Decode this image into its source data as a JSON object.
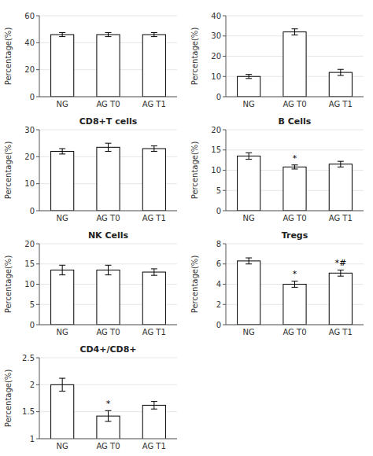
{
  "chart_data": [
    {
      "type": "bar",
      "y_label": "Percentage(%)",
      "ylim": [
        0,
        60
      ],
      "yticks": [
        0,
        20,
        40,
        60
      ],
      "categories": [
        "NG",
        "AG T0",
        "AG T1"
      ],
      "values": [
        46,
        46,
        46
      ],
      "errors": [
        1.5,
        1.5,
        1.5
      ],
      "color": "white"
    },
    {
      "type": "bar",
      "y_label": "Percentage(%)",
      "ylim": [
        0,
        40
      ],
      "yticks": [
        0,
        10,
        20,
        30,
        40
      ],
      "categories": [
        "NG",
        "AG T0",
        "AG T1"
      ],
      "values": [
        10,
        32,
        12
      ],
      "errors": [
        1.0,
        1.5,
        1.5
      ],
      "color": "white"
    },
    {
      "type": "bar",
      "title": "CD8+T cells",
      "y_label": "Percentage(%)",
      "ylim": [
        0,
        30
      ],
      "yticks": [
        0,
        10,
        20,
        30
      ],
      "categories": [
        "NG",
        "AG T0",
        "AG T1"
      ],
      "values": [
        22,
        23.5,
        23
      ],
      "errors": [
        1.0,
        1.5,
        1.0
      ],
      "color": "white"
    },
    {
      "type": "bar",
      "title": "B Cells",
      "y_label": "Percentage(%)",
      "ylim": [
        0,
        20
      ],
      "yticks": [
        0,
        5,
        10,
        15,
        20
      ],
      "categories": [
        "NG",
        "AG T0",
        "AG T1"
      ],
      "values": [
        13.5,
        10.8,
        11.5
      ],
      "errors": [
        0.8,
        0.5,
        0.7
      ],
      "color": "white",
      "annotations": [
        {
          "text": "*",
          "category": "AG T0"
        }
      ]
    },
    {
      "type": "bar",
      "title": "NK Cells",
      "y_label": "Percentage(%)",
      "ylim": [
        0,
        20
      ],
      "yticks": [
        0,
        5,
        10,
        15,
        20
      ],
      "categories": [
        "NG",
        "AG T0",
        "AG T1"
      ],
      "values": [
        13.5,
        13.5,
        13.0
      ],
      "errors": [
        1.2,
        1.2,
        0.8
      ],
      "color": "white"
    },
    {
      "type": "bar",
      "title": "Tregs",
      "y_label": "Percentage(%)",
      "ylim": [
        0,
        8
      ],
      "yticks": [
        0,
        2,
        4,
        6,
        8
      ],
      "categories": [
        "NG",
        "AG T0",
        "AG T1"
      ],
      "values": [
        6.3,
        4.0,
        5.1
      ],
      "errors": [
        0.3,
        0.3,
        0.3
      ],
      "color": "white",
      "annotations": [
        {
          "text": "*",
          "category": "AG T0"
        },
        {
          "text": "*#",
          "category": "AG T1"
        }
      ]
    },
    {
      "type": "bar",
      "title": "CD4+/CD8+",
      "y_label": "Percentage(%)",
      "ylim": [
        1.0,
        2.5
      ],
      "yticks": [
        1,
        1.5,
        2,
        2.5
      ],
      "categories": [
        "NG",
        "AG T0",
        "AG T1"
      ],
      "values": [
        2.0,
        1.42,
        1.62
      ],
      "errors": [
        0.12,
        0.1,
        0.07
      ],
      "color": "white",
      "annotations": [
        {
          "text": "*",
          "category": "AG T0"
        }
      ]
    }
  ]
}
